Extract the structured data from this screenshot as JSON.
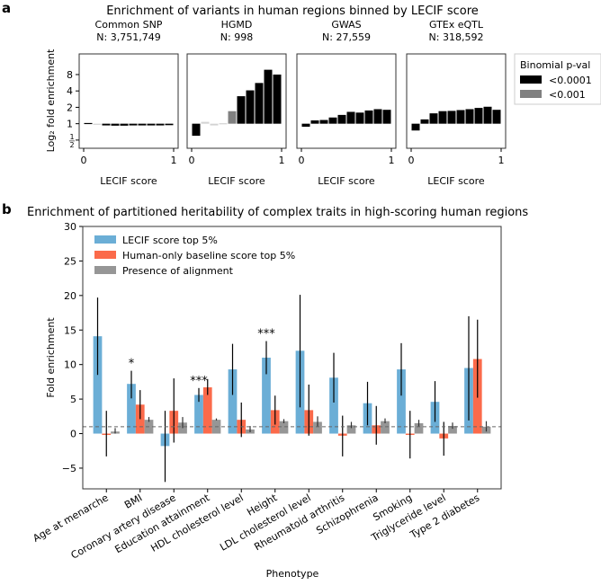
{
  "chart_data": [
    {
      "type": "bar",
      "panel_label": "a",
      "title": "Enrichment of variants in human regions binned by LECIF score",
      "ylabel": "Log₂ fold enrichment",
      "xlabel": "LECIF score",
      "xticks": [
        "0",
        "1"
      ],
      "yticks": [
        {
          "value": -1,
          "label": "1/2"
        },
        {
          "value": 0,
          "label": "1"
        },
        {
          "value": 1,
          "label": "2"
        },
        {
          "value": 2,
          "label": "4"
        },
        {
          "value": 3,
          "label": "8"
        }
      ],
      "ylim_log2": [
        -1.5,
        4.26
      ],
      "legend": {
        "title": "Binomial p-val",
        "placement": "right",
        "entries": [
          {
            "label": "<0.0001",
            "color": "#000000"
          },
          {
            "label": "<0.001",
            "color": "#808080"
          }
        ]
      },
      "sig_colors": {
        "high": "#000000",
        "mid": "#808080",
        "ns": "#d3d3d3"
      },
      "bins": [
        0.05,
        0.15,
        0.25,
        0.35,
        0.45,
        0.55,
        0.65,
        0.75,
        0.85,
        0.95
      ],
      "panels": [
        {
          "name": "Common SNP",
          "n": "N: 3,751,749",
          "fold": [
            1.03,
            0.98,
            0.93,
            0.92,
            0.92,
            0.93,
            0.93,
            0.93,
            0.93,
            0.94
          ],
          "sig": [
            "high",
            "ns",
            "high",
            "high",
            "high",
            "high",
            "high",
            "high",
            "high",
            "high"
          ]
        },
        {
          "name": "HGMD",
          "n": "N: 998",
          "fold": [
            0.6,
            1.08,
            0.93,
            1.02,
            1.7,
            3.2,
            4.1,
            5.6,
            9.8,
            8.0
          ],
          "sig": [
            "high",
            "ns",
            "ns",
            "ns",
            "mid",
            "high",
            "high",
            "high",
            "high",
            "high"
          ]
        },
        {
          "name": "GWAS",
          "n": "N: 27,559",
          "fold": [
            0.88,
            1.15,
            1.17,
            1.3,
            1.45,
            1.65,
            1.6,
            1.75,
            1.85,
            1.8
          ],
          "sig": [
            "high",
            "high",
            "high",
            "high",
            "high",
            "high",
            "high",
            "high",
            "high",
            "high"
          ]
        },
        {
          "name": "GTEx eQTL",
          "n": "N: 318,592",
          "fold": [
            0.75,
            1.2,
            1.55,
            1.7,
            1.72,
            1.78,
            1.85,
            1.95,
            2.05,
            1.8
          ],
          "sig": [
            "high",
            "high",
            "high",
            "high",
            "high",
            "high",
            "high",
            "high",
            "high",
            "high"
          ]
        }
      ]
    },
    {
      "type": "bar",
      "panel_label": "b",
      "title": "Enrichment of partitioned heritability of complex traits in high-scoring human regions",
      "xlabel": "Phenotype",
      "ylabel": "Fold enrichment",
      "ylim": [
        -8,
        30
      ],
      "yticks": [
        -5,
        0,
        5,
        10,
        15,
        20,
        25,
        30
      ],
      "reference_line": 1,
      "legend_placement": "top-left",
      "categories": [
        "Age at menarche",
        "BMI",
        "Coronary artery disease",
        "Education attainment",
        "HDL cholesterol level",
        "Height",
        "LDL cholesterol level",
        "Rheumatoid arthritis",
        "Schizophrenia",
        "Smoking",
        "Triglyceride level",
        "Type 2 diabetes"
      ],
      "annotations": [
        "",
        "*",
        "",
        "***",
        "",
        "***",
        "",
        "",
        "",
        "",
        "",
        ""
      ],
      "series": [
        {
          "name": "LECIF score top 5%",
          "color": "#6baed6",
          "values": [
            14.1,
            7.2,
            -1.8,
            5.6,
            9.3,
            11.0,
            12.0,
            8.1,
            4.4,
            9.3,
            4.6,
            9.5
          ],
          "err": [
            [
              8.5,
              19.7
            ],
            [
              5.1,
              9.1
            ],
            [
              -7.0,
              3.3
            ],
            [
              4.6,
              6.6
            ],
            [
              5.6,
              13.0
            ],
            [
              8.6,
              13.4
            ],
            [
              3.8,
              20.1
            ],
            [
              4.5,
              11.7
            ],
            [
              1.2,
              7.5
            ],
            [
              5.5,
              13.1
            ],
            [
              1.7,
              7.6
            ],
            [
              1.9,
              17.0
            ]
          ]
        },
        {
          "name": "Human-only baseline score top 5%",
          "color": "#fb6a4a",
          "values": [
            0.0,
            4.2,
            3.3,
            6.7,
            2.0,
            3.4,
            3.4,
            -0.3,
            1.2,
            -0.1,
            -0.7,
            10.8
          ],
          "err": [
            [
              -3.3,
              3.3
            ],
            [
              2.1,
              6.3
            ],
            [
              -1.3,
              8.0
            ],
            [
              5.6,
              7.9
            ],
            [
              -0.5,
              4.5
            ],
            [
              1.3,
              5.5
            ],
            [
              -0.3,
              7.1
            ],
            [
              -3.3,
              2.6
            ],
            [
              -1.6,
              4.0
            ],
            [
              -3.6,
              3.3
            ],
            [
              -3.2,
              1.7
            ],
            [
              5.2,
              16.5
            ]
          ]
        },
        {
          "name": "Presence of alignment",
          "color": "#969696",
          "values": [
            0.3,
            2.0,
            1.6,
            2.0,
            0.6,
            1.8,
            1.7,
            1.2,
            1.8,
            1.5,
            1.1,
            1.0
          ],
          "err": [
            [
              0.0,
              0.8
            ],
            [
              1.7,
              2.4
            ],
            [
              0.8,
              2.4
            ],
            [
              1.9,
              2.2
            ],
            [
              0.2,
              1.1
            ],
            [
              1.5,
              2.1
            ],
            [
              1.0,
              2.5
            ],
            [
              0.8,
              1.7
            ],
            [
              1.5,
              2.2
            ],
            [
              1.0,
              2.0
            ],
            [
              0.7,
              1.6
            ],
            [
              0.3,
              1.8
            ]
          ]
        }
      ]
    }
  ]
}
